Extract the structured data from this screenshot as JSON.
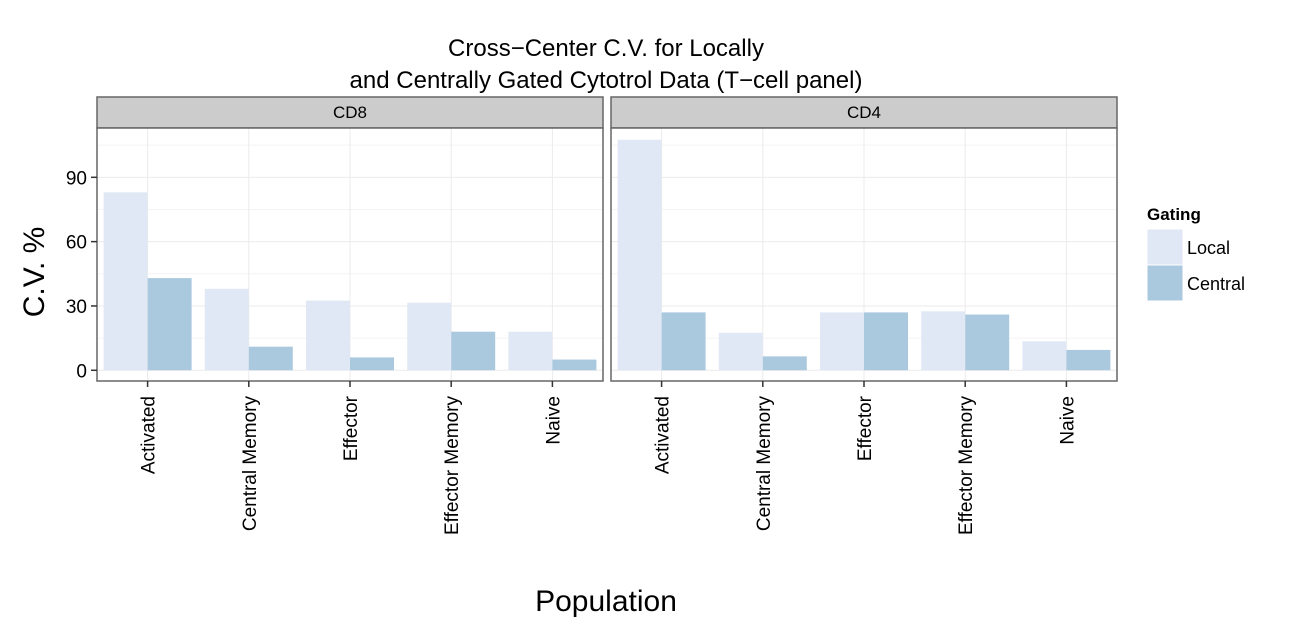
{
  "chart_data": {
    "type": "bar",
    "title_lines": [
      "Cross−Center C.V. for Locally",
      "and Centrally Gated Cytotrol Data (T−cell panel)"
    ],
    "xlabel": "Population",
    "ylabel": "C.V. %",
    "ylim": [
      -5,
      113
    ],
    "y_ticks": [
      0,
      30,
      60,
      90
    ],
    "categories": [
      "Activated",
      "Central Memory",
      "Effector",
      "Effector Memory",
      "Naive"
    ],
    "legend": {
      "title": "Gating",
      "position": "right",
      "entries": [
        "Local",
        "Central"
      ]
    },
    "colors": {
      "Local": "#e1e8f5",
      "Central": "#abc9de",
      "strip_bg": "#cccccc",
      "grid": "#ebebeb"
    },
    "panels": [
      {
        "label": "CD8",
        "series": [
          {
            "name": "Local",
            "values": [
              83,
              38,
              32.5,
              31.5,
              18
            ]
          },
          {
            "name": "Central",
            "values": [
              43,
              11,
              6,
              18,
              5
            ]
          }
        ]
      },
      {
        "label": "CD4",
        "series": [
          {
            "name": "Local",
            "values": [
              107.5,
              17.5,
              27,
              27.5,
              13.5
            ]
          },
          {
            "name": "Central",
            "values": [
              27,
              6.5,
              27,
              26,
              9.5
            ]
          }
        ]
      }
    ]
  }
}
